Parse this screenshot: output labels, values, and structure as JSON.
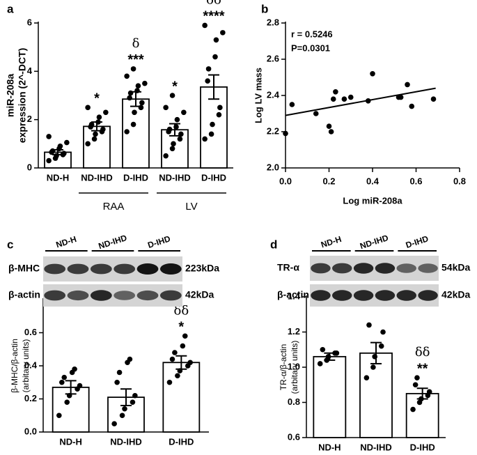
{
  "chart_data": [
    {
      "type": "bar",
      "panel": "a",
      "ylabel": [
        "miR-208a",
        "expression (2^-DCT)"
      ],
      "categories": [
        "ND-H",
        "ND-IHD",
        "D-IHD",
        "ND-IHD",
        "D-IHD"
      ],
      "values": [
        0.65,
        1.72,
        2.85,
        1.58,
        3.35
      ],
      "errors": [
        0.1,
        0.18,
        0.3,
        0.25,
        0.5
      ],
      "points": [
        [
          0.3,
          0.4,
          0.5,
          0.55,
          0.6,
          0.65,
          0.7,
          0.8,
          0.9,
          1.05,
          1.3
        ],
        [
          1.0,
          1.2,
          1.4,
          1.5,
          1.6,
          1.7,
          1.8,
          1.9,
          2.1,
          2.3,
          2.5
        ],
        [
          1.5,
          1.8,
          2.3,
          2.5,
          2.7,
          2.9,
          3.1,
          3.2,
          3.4,
          3.5,
          3.8,
          4.1
        ],
        [
          0.5,
          0.8,
          1.0,
          1.2,
          1.4,
          1.5,
          1.6,
          1.7,
          2.0,
          2.3,
          2.5,
          3.0
        ],
        [
          1.2,
          1.4,
          1.8,
          2.2,
          2.5,
          3.6,
          4.1,
          4.6,
          5.3,
          5.6,
          5.9
        ]
      ],
      "annotations": [
        [],
        [
          "*"
        ],
        [
          "δ",
          "***"
        ],
        [
          "*"
        ],
        [
          "δδ",
          "****"
        ]
      ],
      "groups": [
        "RAA",
        "LV"
      ],
      "color": "#ffffff",
      "ylim": [
        0,
        6
      ],
      "yticks": [
        0,
        2,
        4,
        6
      ]
    },
    {
      "type": "scatter",
      "panel": "b",
      "xlabel": "Log miR-208a",
      "ylabel": "Log LV mass",
      "x": [
        0.0,
        0.03,
        0.14,
        0.2,
        0.21,
        0.22,
        0.23,
        0.27,
        0.3,
        0.38,
        0.4,
        0.52,
        0.53,
        0.56,
        0.58,
        0.68
      ],
      "values": [
        2.19,
        2.35,
        2.3,
        2.23,
        2.2,
        2.38,
        2.42,
        2.38,
        2.39,
        2.37,
        2.52,
        2.39,
        2.39,
        2.46,
        2.34,
        2.38
      ],
      "fit": {
        "x": [
          0,
          0.69
        ],
        "values": [
          2.29,
          2.44
        ]
      },
      "annotations": [
        "r = 0.5246",
        "P=0.0301"
      ],
      "color": "#000000",
      "xlim": [
        0,
        0.8
      ],
      "xticks": [
        {
          "value": 0,
          "label": "0.0"
        },
        0.2,
        0.4,
        0.6,
        0.8
      ],
      "ylim": [
        2.0,
        2.8
      ],
      "yticks": [
        {
          "value": 2,
          "label": "2.0"
        },
        2.2,
        2.4,
        2.6,
        2.8
      ]
    },
    {
      "type": "bar",
      "panel": "c",
      "ylabel": [
        "β-MHC/β-actin",
        "(arbitary units)"
      ],
      "categories": [
        "ND-H",
        "ND-IHD",
        "D-IHD"
      ],
      "values": [
        0.27,
        0.21,
        0.42
      ],
      "errors": [
        0.04,
        0.05,
        0.04
      ],
      "points": [
        [
          0.1,
          0.18,
          0.22,
          0.26,
          0.28,
          0.3,
          0.33,
          0.36,
          0.38
        ],
        [
          0.05,
          0.1,
          0.14,
          0.18,
          0.22,
          0.3,
          0.36,
          0.42,
          0.44
        ],
        [
          0.3,
          0.34,
          0.37,
          0.4,
          0.42,
          0.44,
          0.48,
          0.52,
          0.58
        ]
      ],
      "annotations": [
        [],
        [],
        [
          "δδ",
          "*"
        ]
      ],
      "color": "#ffffff",
      "ylim": [
        0,
        0.8
      ],
      "yticks": [
        {
          "value": 0,
          "label": "0.0"
        },
        0.2,
        0.4,
        0.6
      ]
    },
    {
      "type": "bar",
      "panel": "d",
      "ylabel": [
        "TR-α/β-actin",
        "(arbitary units)"
      ],
      "categories": [
        "ND-H",
        "ND-IHD",
        "D-IHD"
      ],
      "values": [
        1.06,
        1.08,
        0.85
      ],
      "errors": [
        0.02,
        0.06,
        0.03
      ],
      "points": [
        [
          1.02,
          1.04,
          1.06,
          1.08,
          1.08,
          1.1
        ],
        [
          0.94,
          1.0,
          1.06,
          1.12,
          1.2,
          1.24
        ],
        [
          0.76,
          0.8,
          0.82,
          0.84,
          0.86,
          0.9,
          0.94
        ]
      ],
      "annotations": [
        [],
        [],
        [
          "δδ",
          "**"
        ]
      ],
      "color": "#ffffff",
      "ylim": [
        0.6,
        1.4
      ],
      "yticks": [
        0.6,
        0.8,
        {
          "value": 1,
          "label": "1.0"
        },
        1.2,
        1.4
      ]
    }
  ],
  "blots": [
    {
      "lanes": [
        "ND-H",
        "ND-IHD",
        "D-IHD"
      ],
      "rows": [
        {
          "protein": "β-MHC",
          "size": "223kDa"
        },
        {
          "protein": "β-actin",
          "size": "42kDa"
        }
      ]
    },
    {
      "lanes": [
        "ND-H",
        "ND-IHD",
        "D-IHD"
      ],
      "rows": [
        {
          "protein": "TR-α",
          "size": "54kDa"
        },
        {
          "protein": "β-actin",
          "size": "42kDa"
        }
      ]
    }
  ]
}
